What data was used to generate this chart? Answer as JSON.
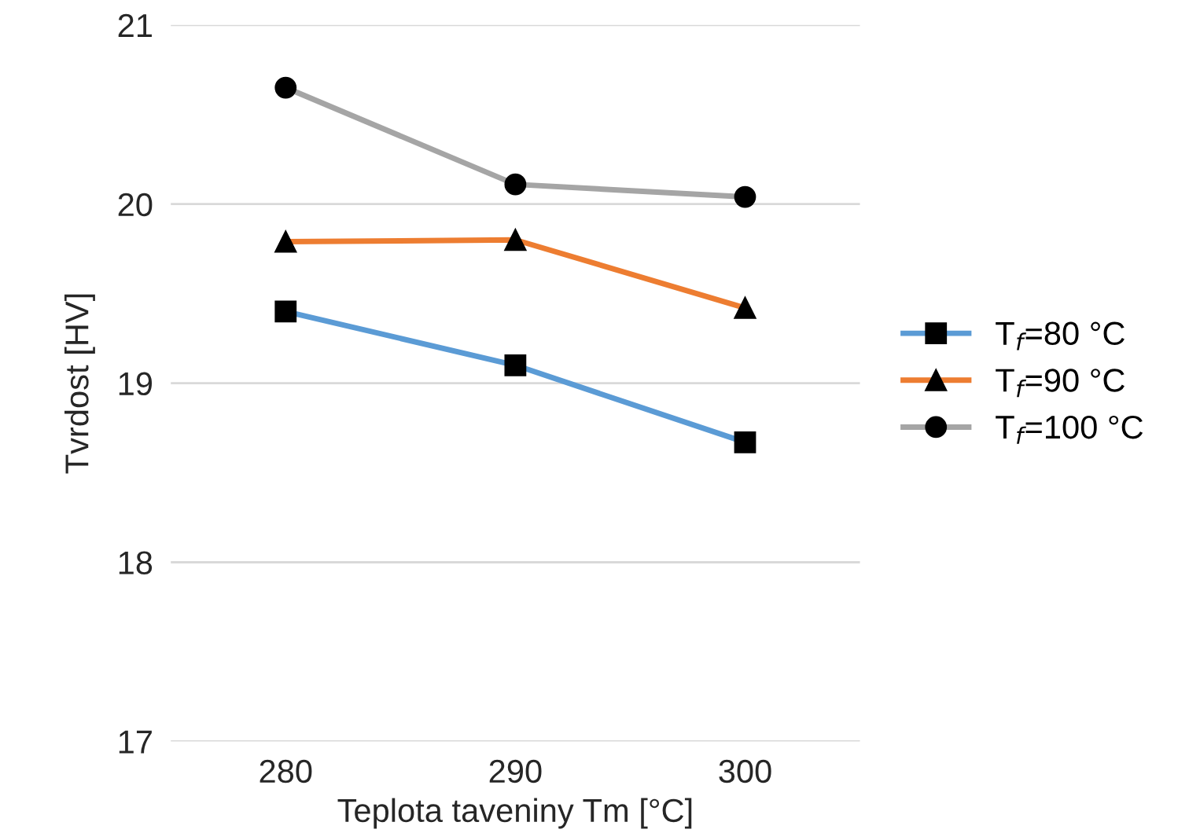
{
  "chart_data": {
    "type": "line",
    "xlabel": "Teplota taveniny Tm [°C]",
    "ylabel": "Tvrdost [HV]",
    "categories": [
      "280",
      "290",
      "300"
    ],
    "series": [
      {
        "name": "T$_{f}$=80 °C",
        "color": "#5b9bd5",
        "marker": "square",
        "values": [
          19.4,
          19.1,
          18.67
        ]
      },
      {
        "name": "T$_{f}$=90 °C",
        "color": "#ed7d31",
        "marker": "triangle",
        "values": [
          19.79,
          19.8,
          19.42
        ]
      },
      {
        "name": "T$_{f}$=100 °C",
        "color": "#a5a5a5",
        "marker": "circle",
        "values": [
          20.65,
          20.11,
          20.04
        ]
      }
    ],
    "ylim": [
      17,
      21
    ],
    "yticks": [
      17,
      18,
      19,
      20,
      21
    ],
    "grid": "y",
    "legend": "right",
    "line_style": "solid"
  }
}
